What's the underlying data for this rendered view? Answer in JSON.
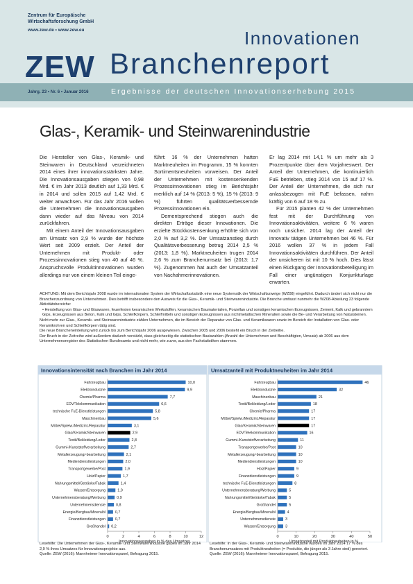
{
  "header": {
    "institute": "Zentrum für Europäische Wirtschaftsforschung GmbH",
    "web": "www.zew.de • www.zew.eu",
    "logo": "ZEW",
    "series": "Innovationen",
    "report": "Branchenreport",
    "issue": "Jahrg. 23 • Nr. 6 • Januar 2016",
    "subtitle": "Ergebnisse der deutschen Innovationserhebung 2015"
  },
  "title": "Glas-, Keramik- und Steinwarenindustrie",
  "body": [
    [
      "Die Hersteller von Glas-, Keramik- und Steinwaren in Deutschland verzeichneten 2014 eines ihrer innovationsstärksten Jahre. Die Innovationsausgaben stiegen von 0,98 Mrd. € im Jahr 2013 deutlich auf 1,33 Mrd. € in 2014 und sollen 2015 auf 1,42 Mrd. € weiter anwachsen. Für das Jahr 2016 wollen die Unternehmen die Innovationsausgaben dann wieder auf das Niveau von 2014 zurückfahren.",
      "Mit einem Anteil der Innovationsausgaben am Umsatz von 2,9 % wurde der höchste Wert seit 2009 erzielt. Der Anteil der Unternehmen mit Produkt- oder Prozessinnovationen stieg von 40 auf 46 %. Anspruchsvolle Produktinnovationen wurden allerdings nur von einem kleinen Teil einge-"
    ],
    [
      "führt: 16 % der Unternehmen hatten Marktneuheiten im Programm, 15 % konnten Sortimentsneuheiten vorweisen. Der Anteil der Unternehmen mit kostensenkenden Prozessinnovationen stieg im Berichtsjahr merklich auf 14 % (2013: 5 %), 15 % (2013: 9 %) führten qualitätsverbessernde Prozessinnovationen ein.",
      "Dementsprechend stiegen auch die direkten Erträge dieser Innovationen. Die erzielte Stückkostensenkung erhöhte sich von 2,0 % auf 3,2 %. Der Umsatzanstieg durch Qualitätsverbesserung betrug 2014 2,5 % (2013: 1,8 %). Marktneuheiten trugen 2014 2,6 % zum Branchenumsatz bei (2013: 1,7 %). Zugenommen hat auch der Umsatzanteil von Nachahmerinnovationen."
    ],
    [
      "Er lag 2014 mit 14,1 % um mehr als 3 Prozentpunkte über dem Vorjahreswert. Der Anteil der Unternehmen, die kontinuierlich FuE betrieben, stieg 2014 von 15 auf 17 %. Der Anteil der Unternehmen, die sich nur anlassbezogen mit FuE befassen, nahm kräftig von 6 auf 18 % zu.",
      "Für 2015 planten 42 % der Unternehmen fest mit der Durchführung von Innovationsaktivitäten, weitere 6 % waren noch unsicher. 2014 lag der Anteil der innovativ tätigen Unternehmen bei 46 %. Für 2016 wollen 37 % in jedem Fall Innovationsaktivitäten durchführen. Der Anteil der unsicheren ist mit 10 % hoch. Dies lässt einen Rückgang der Innovationsbeteiligung im Fall einer ungünstigen Konjunkturlage erwarten."
    ]
  ],
  "notes": [
    "ACHTUNG: Mit dem Berichtsjahr 2008 wurde im internationalen System der Wirtschaftsstatistik eine neue Systematik der Wirtschaftszweige (WZ08) eingeführt. Dadurch ändert sich nicht nur die Branchenzuordnung von Unternehmen. Dies betrifft insbesondere den Ausweis für die Glas-, Keramik- und Steinwarenindustrie. Die Branche umfasst nunmehr die WZ08-Abteilung 23 folgende Aktivitätsbereiche:",
    "• Herstellung von Glas- und Glaswaren, feuerfesten keramischen Werkstoffen, keramischen Baumaterialien, Porzellan und sonstigen keramischen Erzeugnissen, Zement, Kalk und gebranntem Gips, Erzeugnissen aus Beton, Kalk und Gips, Schleifkörpern, Schleifmitteln und sonstigen Erzeugnissen aus nichtmetallischen Mineralien sowie die Be- und Verarbeitung von Natursteinen.",
    "Nicht mehr zur Glas-, Keramik- und Steinwarenindustrie zählen Unternehmen, die im Bereich der Reparatur von Glas- und Keramikwaren sowie im Bereich der Installation von Glas- oder Keramikrohren und Schleifkörpern tätig sind.",
    "Die neue Brancheneinteilung wird zurück bis zum Berichtsjahr 2006 ausgewiesen. Zwischen 2005 und 2006 besteht ein Bruch in der Zeitreihe.",
    "Der Bruch in der Zeitreihe wird außerdem dadurch verstärkt, dass gleichzeitig die statistischen Basiszahlen (Anzahl der Unternehmen und Beschäftigten, Umsatz) ab 2006 aus dem Unternehmensregister des Statistischen Bundesamts und nicht mehr, wie zuvor, aus den Fachstatistiken stammen."
  ],
  "chart_data": [
    {
      "type": "hbar",
      "title": "Innovationsintensität nach Branchen im Jahr 2014",
      "xlabel": "Innovationsausgaben in % des Umsatzes",
      "categories": [
        "Fahrzeugbau",
        "Elektroindustrie",
        "Chemie/Pharma",
        "EDV/Telekommunikation",
        "technische FuE-Dienstleistungen",
        "Maschinenbau",
        "Möbel/Spielw./Medizint./Reparatur",
        "Glas/Keramik/Steinwaren",
        "Textil/Bekleidung/Leder",
        "Gummi-/Kunststoffverarbeitung",
        "Metallerzeugung/-bearbeitung",
        "Mediendienstleistungen",
        "Transportgewerbe/Post",
        "Holz/Papier",
        "Nahrungsmittel/Getränke/Tabak",
        "Wasser/Entsorgung",
        "Unternehmensberatung/Werbung",
        "Unternehmensdienste",
        "Energie/Bergbau/Mineralöl",
        "Finanzdienstleistungen",
        "Großhandel"
      ],
      "values": [
        10.0,
        9.9,
        7.7,
        6.6,
        5.8,
        5.6,
        3.1,
        2.9,
        2.8,
        2.7,
        2.1,
        2.0,
        1.9,
        1.7,
        1.4,
        1.0,
        0.9,
        0.8,
        0.7,
        0.7,
        0.2
      ],
      "value_labels": [
        "10,0",
        "9,9",
        "7,7",
        "6,6",
        "5,8",
        "5,6",
        "3,1",
        "2,9",
        "2,8",
        "2,7",
        "2,1",
        "2,0",
        "1,9",
        "1,7",
        "1,4",
        "1,0",
        "0,9",
        "0,8",
        "0,7",
        "0,7",
        "0,2"
      ],
      "color": "#2f72bd",
      "highlight": "Glas/Keramik/Steinwaren",
      "highlight_color": "#000000",
      "xlim": [
        0,
        12
      ],
      "xticks": [
        0,
        2,
        4,
        6,
        8,
        10,
        12
      ],
      "note": "Lesehilfe: Die Unternehmen der Glas-, Keramik- und Steinwarenindustrie gaben im Jahr 2014 2,9 % ihres Umsatzes für Innovationsprojekte aus.",
      "source": "Quelle: ZEW (2016): Mannheimer Innovationspanel, Befragung 2015."
    },
    {
      "type": "hbar",
      "title": "Umsatzanteil mit Produktneuheiten im Jahr 2014",
      "xlabel": "Umsatzanteil mit Produktneuheiten in %",
      "categories": [
        "Fahrzeugbau",
        "Elektroindustrie",
        "Maschinenbau",
        "Textil/Bekleidung/Leder",
        "Chemie/Pharma",
        "Möbel/Spielw./Medizint./Reparatur",
        "Glas/Keramik/Steinwaren",
        "EDV/Telekommunikation",
        "Gummi-/Kunststoffverarbeitung",
        "Transportgewerbe/Post",
        "Metallerzeugung/-bearbeitung",
        "Mediendienstleistungen",
        "Holz/Papier",
        "Finanzdienstleistungen",
        "technische FuE-Dienstleistungen",
        "Unternehmensberatung/Werbung",
        "Nahrungsmittel/Getränke/Tabak",
        "Großhandel",
        "Energie/Bergbau/Mineralöl",
        "Unternehmensdienste",
        "Wasser/Entsorgung"
      ],
      "values": [
        46,
        32,
        21,
        18,
        17,
        17,
        17,
        16,
        11,
        10,
        10,
        10,
        9,
        9,
        8,
        5,
        5,
        5,
        4,
        3,
        3
      ],
      "color": "#2f72bd",
      "highlight": "Glas/Keramik/Steinwaren",
      "highlight_color": "#000000",
      "xlim": [
        0,
        50
      ],
      "xticks": [
        0,
        10,
        20,
        30,
        40,
        50
      ],
      "note": "Lesehilfe: In der Glas-, Keramik- und Steinwarenindustrie wurden im Jahr 2014 17 % des Branchenumsatzes mit Produktneuheiten (= Produkte, die jünger als 3 Jahre sind) generiert.",
      "source": "Quelle: ZEW (2016): Mannheimer Innovationspanel, Befragung 2015."
    }
  ]
}
